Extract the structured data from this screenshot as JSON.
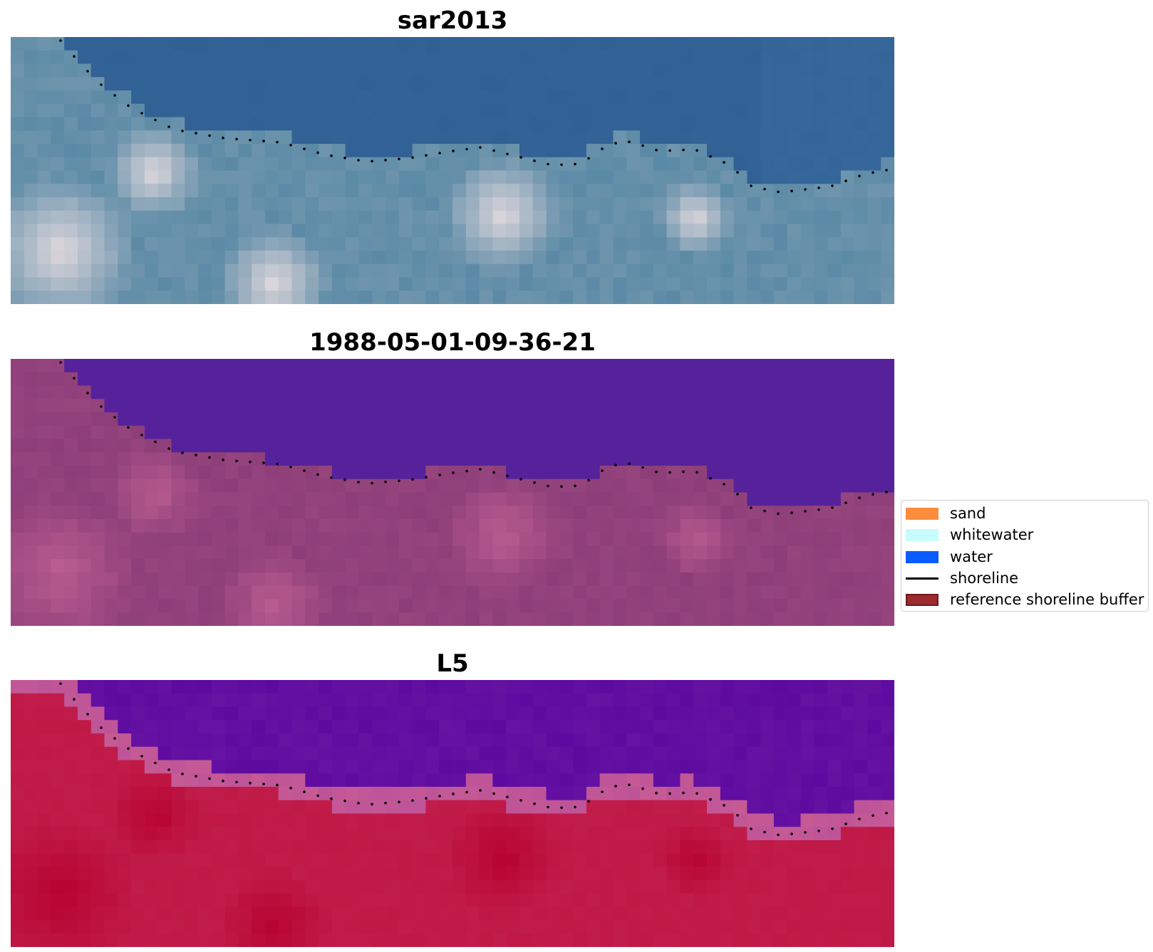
{
  "panels": [
    {
      "title": "sar2013",
      "style": "rgb"
    },
    {
      "title": "1988-05-01-09-36-21",
      "style": "classified"
    },
    {
      "title": "L5",
      "style": "ndwi"
    }
  ],
  "legend": {
    "items": [
      {
        "label": "sand",
        "color": "#fb8d3d",
        "kind": "patch"
      },
      {
        "label": "whitewater",
        "color": "#c8fcfc",
        "kind": "patch"
      },
      {
        "label": "water",
        "color": "#0a5bff",
        "kind": "patch"
      },
      {
        "label": "shoreline",
        "color": "#000000",
        "kind": "line"
      },
      {
        "label": "reference shoreline buffer",
        "color": "#9c2b2f",
        "kind": "patch"
      }
    ]
  },
  "colors": {
    "rgb_water": "#2f5f93",
    "rgb_foam": "#e6dcdf",
    "rgb_land": "#5b8aa6",
    "class_water": "#55229b",
    "class_land": "#8d3e78",
    "class_pink": "#bd5f93",
    "ndwi_water": "#5e0aa0",
    "ndwi_land": "#c11d4a",
    "ndwi_dark": "#b6002e",
    "ndwi_edge": "#c65a95"
  }
}
